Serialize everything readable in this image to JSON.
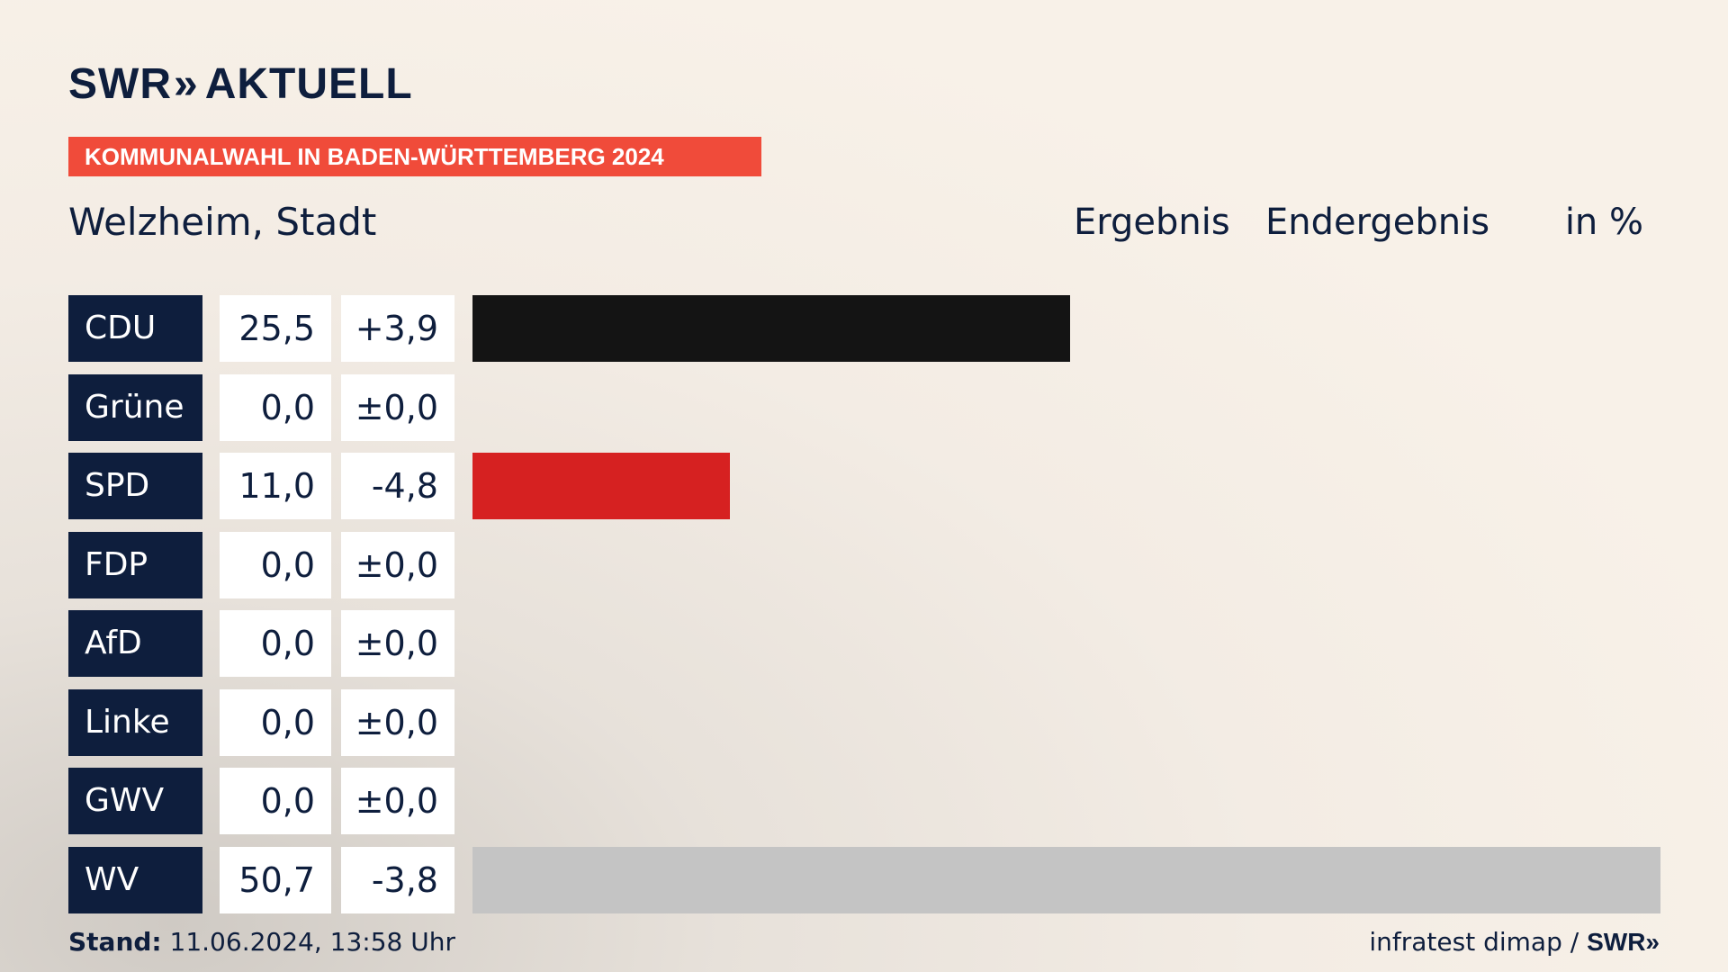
{
  "brand": {
    "name": "SWR",
    "chevrons": "»",
    "section": "AKTUELL"
  },
  "banner": "KOMMUNALWAHL IN BADEN-WÜRTTEMBERG 2024",
  "place": "Welzheim, Stadt",
  "headers": {
    "result": "Ergebnis",
    "final": "Endergebnis",
    "unit": "in %"
  },
  "footer": {
    "stand_label": "Stand:",
    "stand_value": "11.06.2024, 13:58 Uhr",
    "source": "infratest dimap /",
    "source_brand": "SWR",
    "source_chevrons": "»"
  },
  "chart_data": {
    "type": "bar",
    "orientation": "horizontal",
    "categories": [
      "CDU",
      "Grüne",
      "SPD",
      "FDP",
      "AfD",
      "Linke",
      "GWV",
      "WV"
    ],
    "values": [
      25.5,
      0.0,
      11.0,
      0.0,
      0.0,
      0.0,
      0.0,
      50.7
    ],
    "value_labels": [
      "25,5",
      "0,0",
      "11,0",
      "0,0",
      "0,0",
      "0,0",
      "0,0",
      "50,7"
    ],
    "diff_labels": [
      "+3,9",
      "±0,0",
      "-4,8",
      "±0,0",
      "±0,0",
      "±0,0",
      "±0,0",
      "-3,8"
    ],
    "colors": [
      "#141414",
      "#46962b",
      "#d62121",
      "#ffe000",
      "#1a9fe0",
      "#be3075",
      "#7f7f7f",
      "#c4c4c4"
    ],
    "xlim": [
      0,
      50.7
    ]
  }
}
